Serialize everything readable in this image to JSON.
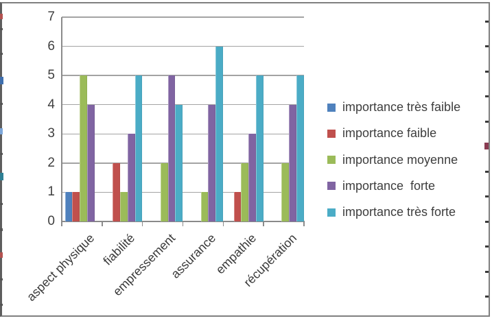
{
  "window": {
    "type": "spreadsheet-chart-object",
    "background": "#ffffff",
    "border_color": "#7f7f7f"
  },
  "chart_data": {
    "type": "bar",
    "title": "",
    "xlabel": "",
    "ylabel": "",
    "categories": [
      "aspect physique",
      "fiabilité",
      "empressement",
      "assurance",
      "empathie",
      "récupération"
    ],
    "series": [
      {
        "name": "importance très faible",
        "color": "#4F81BD",
        "values": [
          1,
          0,
          0,
          0,
          0,
          0
        ]
      },
      {
        "name": "importance faible",
        "color": "#C0504D",
        "values": [
          1,
          2,
          0,
          0,
          1,
          0
        ]
      },
      {
        "name": "importance moyenne",
        "color": "#9BBB59",
        "values": [
          5,
          1,
          2,
          1,
          2,
          2
        ]
      },
      {
        "name": "importance  forte",
        "color": "#8064A2",
        "values": [
          4,
          3,
          5,
          4,
          3,
          4
        ]
      },
      {
        "name": "importance très forte",
        "color": "#4BACC6",
        "values": [
          0,
          5,
          4,
          6,
          5,
          5
        ]
      }
    ],
    "ylim": [
      0,
      7
    ],
    "yticks": [
      0,
      1,
      2,
      3,
      4,
      5,
      6,
      7
    ],
    "grid": true,
    "legend_position": "right",
    "axis_text_color": "#3f3f3f",
    "gridline_color": "#a3a3a3"
  }
}
